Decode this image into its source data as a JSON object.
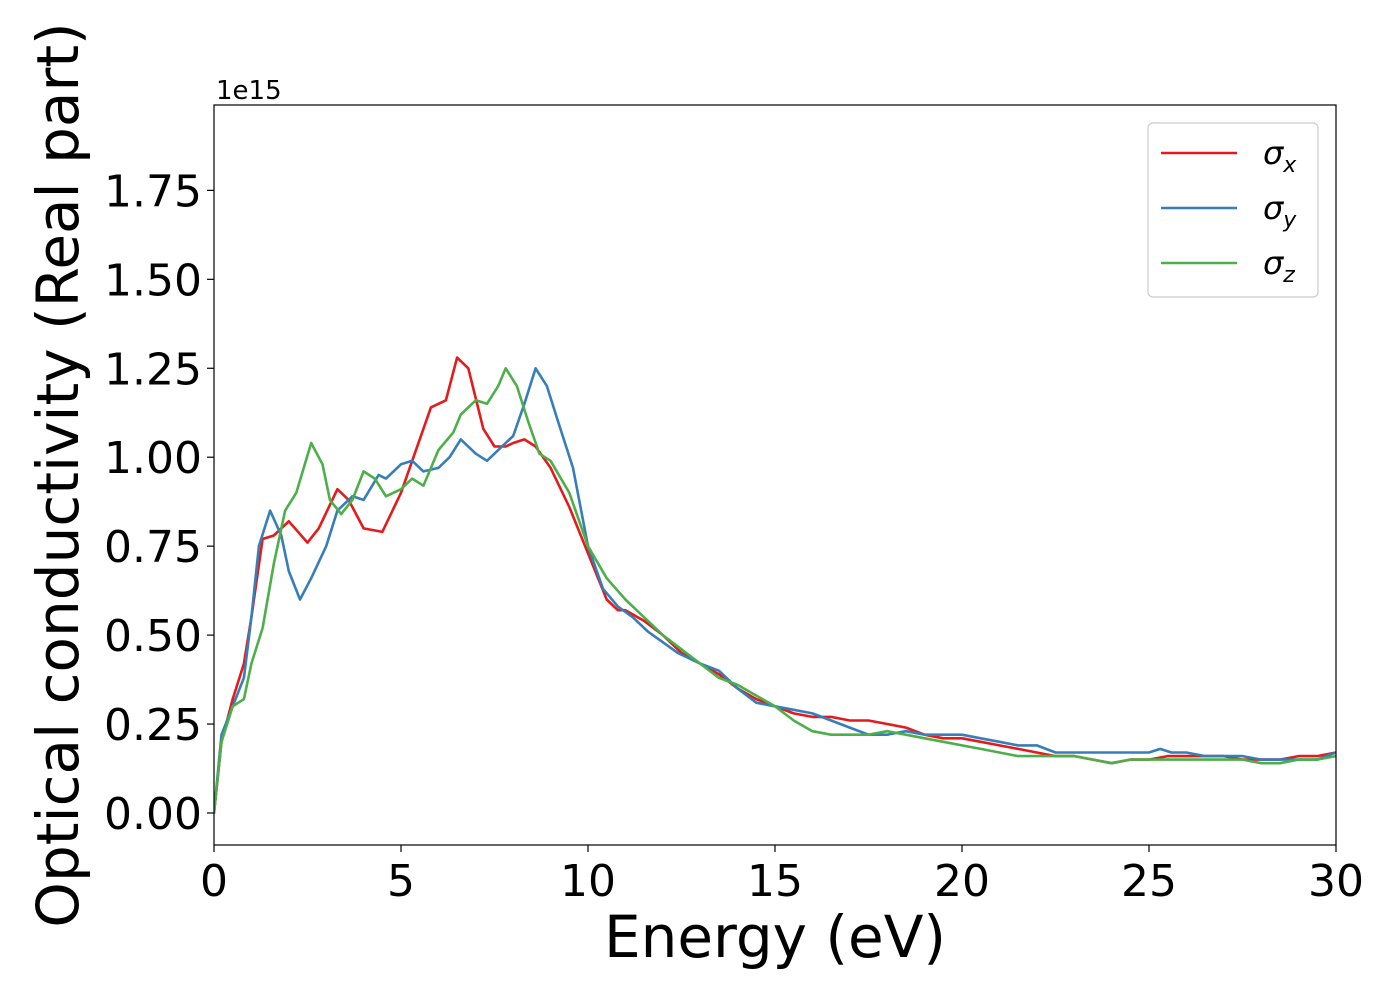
{
  "chart_data": {
    "type": "line",
    "title": "",
    "xlabel": "Energy (eV)",
    "ylabel": "Optical conductivity (Real part)",
    "y_offset_label": "1e15",
    "xlim": [
      0,
      30
    ],
    "ylim": [
      -0.09,
      1.99
    ],
    "x_ticks": [
      0,
      5,
      10,
      15,
      20,
      25,
      30
    ],
    "x_tick_labels": [
      "0",
      "5",
      "10",
      "15",
      "20",
      "25",
      "30"
    ],
    "y_ticks": [
      0.0,
      0.25,
      0.5,
      0.75,
      1.0,
      1.25,
      1.5,
      1.75
    ],
    "y_tick_labels": [
      "0.00",
      "0.25",
      "0.50",
      "0.75",
      "1.00",
      "1.25",
      "1.50",
      "1.75"
    ],
    "grid": false,
    "legend_position": "top-right",
    "series": [
      {
        "name": "σx",
        "legend_symbol": "σ",
        "legend_subscript": "x",
        "color": "#e41a1c",
        "points": [
          [
            0,
            0.0
          ],
          [
            0.2,
            0.2
          ],
          [
            0.5,
            0.32
          ],
          [
            0.8,
            0.42
          ],
          [
            1.0,
            0.55
          ],
          [
            1.3,
            0.77
          ],
          [
            1.6,
            0.78
          ],
          [
            2.0,
            0.82
          ],
          [
            2.5,
            0.76
          ],
          [
            2.8,
            0.8
          ],
          [
            3.3,
            0.91
          ],
          [
            3.6,
            0.88
          ],
          [
            4.0,
            0.8
          ],
          [
            4.5,
            0.79
          ],
          [
            5.0,
            0.9
          ],
          [
            5.5,
            1.05
          ],
          [
            5.8,
            1.14
          ],
          [
            6.2,
            1.16
          ],
          [
            6.5,
            1.28
          ],
          [
            6.8,
            1.25
          ],
          [
            7.2,
            1.08
          ],
          [
            7.5,
            1.03
          ],
          [
            7.8,
            1.03
          ],
          [
            8.0,
            1.04
          ],
          [
            8.3,
            1.05
          ],
          [
            8.6,
            1.03
          ],
          [
            9.0,
            0.97
          ],
          [
            9.5,
            0.86
          ],
          [
            10.0,
            0.73
          ],
          [
            10.5,
            0.6
          ],
          [
            10.8,
            0.57
          ],
          [
            11.0,
            0.57
          ],
          [
            11.5,
            0.54
          ],
          [
            12.0,
            0.5
          ],
          [
            12.5,
            0.45
          ],
          [
            13.0,
            0.42
          ],
          [
            13.5,
            0.39
          ],
          [
            14.0,
            0.35
          ],
          [
            14.5,
            0.32
          ],
          [
            15.0,
            0.3
          ],
          [
            15.5,
            0.28
          ],
          [
            16.0,
            0.27
          ],
          [
            16.5,
            0.27
          ],
          [
            17.0,
            0.26
          ],
          [
            17.5,
            0.26
          ],
          [
            18.0,
            0.25
          ],
          [
            18.5,
            0.24
          ],
          [
            19.0,
            0.22
          ],
          [
            19.5,
            0.21
          ],
          [
            20.0,
            0.21
          ],
          [
            20.5,
            0.2
          ],
          [
            21.0,
            0.19
          ],
          [
            21.5,
            0.18
          ],
          [
            22.0,
            0.17
          ],
          [
            22.5,
            0.16
          ],
          [
            23.0,
            0.16
          ],
          [
            23.5,
            0.15
          ],
          [
            24.0,
            0.14
          ],
          [
            24.5,
            0.15
          ],
          [
            25.0,
            0.15
          ],
          [
            25.5,
            0.16
          ],
          [
            26.0,
            0.16
          ],
          [
            26.5,
            0.16
          ],
          [
            27.0,
            0.16
          ],
          [
            27.5,
            0.15
          ],
          [
            28.0,
            0.15
          ],
          [
            28.5,
            0.15
          ],
          [
            29.0,
            0.16
          ],
          [
            29.5,
            0.16
          ],
          [
            30.0,
            0.17
          ]
        ]
      },
      {
        "name": "σy",
        "legend_symbol": "σ",
        "legend_subscript": "y",
        "color": "#377eb8",
        "points": [
          [
            0,
            0.0
          ],
          [
            0.2,
            0.22
          ],
          [
            0.5,
            0.3
          ],
          [
            0.8,
            0.38
          ],
          [
            1.0,
            0.55
          ],
          [
            1.2,
            0.75
          ],
          [
            1.5,
            0.85
          ],
          [
            1.8,
            0.78
          ],
          [
            2.0,
            0.68
          ],
          [
            2.3,
            0.6
          ],
          [
            2.6,
            0.66
          ],
          [
            3.0,
            0.75
          ],
          [
            3.3,
            0.85
          ],
          [
            3.7,
            0.89
          ],
          [
            4.0,
            0.88
          ],
          [
            4.4,
            0.95
          ],
          [
            4.6,
            0.94
          ],
          [
            5.0,
            0.98
          ],
          [
            5.3,
            0.99
          ],
          [
            5.6,
            0.96
          ],
          [
            6.0,
            0.97
          ],
          [
            6.3,
            1.0
          ],
          [
            6.6,
            1.05
          ],
          [
            7.0,
            1.01
          ],
          [
            7.3,
            0.99
          ],
          [
            7.6,
            1.02
          ],
          [
            8.0,
            1.06
          ],
          [
            8.3,
            1.15
          ],
          [
            8.6,
            1.25
          ],
          [
            8.9,
            1.2
          ],
          [
            9.2,
            1.1
          ],
          [
            9.6,
            0.97
          ],
          [
            10.0,
            0.75
          ],
          [
            10.4,
            0.63
          ],
          [
            10.8,
            0.58
          ],
          [
            11.2,
            0.55
          ],
          [
            11.6,
            0.51
          ],
          [
            12.0,
            0.48
          ],
          [
            12.4,
            0.45
          ],
          [
            13.0,
            0.42
          ],
          [
            13.5,
            0.4
          ],
          [
            14.0,
            0.35
          ],
          [
            14.5,
            0.31
          ],
          [
            15.0,
            0.3
          ],
          [
            15.5,
            0.29
          ],
          [
            16.0,
            0.28
          ],
          [
            16.5,
            0.26
          ],
          [
            17.0,
            0.24
          ],
          [
            17.5,
            0.22
          ],
          [
            18.0,
            0.22
          ],
          [
            18.5,
            0.23
          ],
          [
            19.0,
            0.22
          ],
          [
            19.5,
            0.22
          ],
          [
            20.0,
            0.22
          ],
          [
            20.5,
            0.21
          ],
          [
            21.0,
            0.2
          ],
          [
            21.5,
            0.19
          ],
          [
            22.0,
            0.19
          ],
          [
            22.5,
            0.17
          ],
          [
            23.0,
            0.17
          ],
          [
            23.5,
            0.17
          ],
          [
            24.0,
            0.17
          ],
          [
            24.5,
            0.17
          ],
          [
            25.0,
            0.17
          ],
          [
            25.3,
            0.18
          ],
          [
            25.6,
            0.17
          ],
          [
            26.0,
            0.17
          ],
          [
            26.5,
            0.16
          ],
          [
            27.0,
            0.16
          ],
          [
            27.5,
            0.16
          ],
          [
            28.0,
            0.15
          ],
          [
            28.5,
            0.15
          ],
          [
            29.0,
            0.15
          ],
          [
            29.5,
            0.15
          ],
          [
            30.0,
            0.17
          ]
        ]
      },
      {
        "name": "σz",
        "legend_symbol": "σ",
        "legend_subscript": "z",
        "color": "#4daf4a",
        "points": [
          [
            0,
            0.0
          ],
          [
            0.2,
            0.2
          ],
          [
            0.5,
            0.3
          ],
          [
            0.8,
            0.32
          ],
          [
            1.0,
            0.42
          ],
          [
            1.3,
            0.52
          ],
          [
            1.6,
            0.7
          ],
          [
            1.9,
            0.85
          ],
          [
            2.2,
            0.9
          ],
          [
            2.6,
            1.04
          ],
          [
            2.9,
            0.98
          ],
          [
            3.1,
            0.88
          ],
          [
            3.4,
            0.84
          ],
          [
            3.7,
            0.88
          ],
          [
            4.0,
            0.96
          ],
          [
            4.3,
            0.94
          ],
          [
            4.6,
            0.89
          ],
          [
            5.0,
            0.91
          ],
          [
            5.3,
            0.94
          ],
          [
            5.6,
            0.92
          ],
          [
            6.0,
            1.02
          ],
          [
            6.4,
            1.07
          ],
          [
            6.6,
            1.12
          ],
          [
            7.0,
            1.16
          ],
          [
            7.3,
            1.15
          ],
          [
            7.6,
            1.2
          ],
          [
            7.8,
            1.25
          ],
          [
            8.1,
            1.2
          ],
          [
            8.4,
            1.1
          ],
          [
            8.7,
            1.01
          ],
          [
            9.0,
            0.99
          ],
          [
            9.5,
            0.9
          ],
          [
            10.0,
            0.75
          ],
          [
            10.5,
            0.66
          ],
          [
            11.0,
            0.6
          ],
          [
            11.5,
            0.55
          ],
          [
            12.0,
            0.5
          ],
          [
            12.5,
            0.46
          ],
          [
            13.0,
            0.42
          ],
          [
            13.5,
            0.38
          ],
          [
            14.0,
            0.36
          ],
          [
            14.5,
            0.33
          ],
          [
            15.0,
            0.3
          ],
          [
            15.5,
            0.26
          ],
          [
            16.0,
            0.23
          ],
          [
            16.5,
            0.22
          ],
          [
            17.0,
            0.22
          ],
          [
            17.5,
            0.22
          ],
          [
            18.0,
            0.23
          ],
          [
            18.5,
            0.22
          ],
          [
            19.0,
            0.21
          ],
          [
            19.5,
            0.2
          ],
          [
            20.0,
            0.19
          ],
          [
            20.5,
            0.18
          ],
          [
            21.0,
            0.17
          ],
          [
            21.5,
            0.16
          ],
          [
            22.0,
            0.16
          ],
          [
            22.5,
            0.16
          ],
          [
            23.0,
            0.16
          ],
          [
            23.5,
            0.15
          ],
          [
            24.0,
            0.14
          ],
          [
            24.5,
            0.15
          ],
          [
            25.0,
            0.15
          ],
          [
            25.5,
            0.15
          ],
          [
            26.0,
            0.15
          ],
          [
            26.5,
            0.15
          ],
          [
            27.0,
            0.15
          ],
          [
            27.5,
            0.15
          ],
          [
            28.0,
            0.14
          ],
          [
            28.5,
            0.14
          ],
          [
            29.0,
            0.15
          ],
          [
            29.5,
            0.15
          ],
          [
            30.0,
            0.16
          ]
        ]
      }
    ]
  }
}
